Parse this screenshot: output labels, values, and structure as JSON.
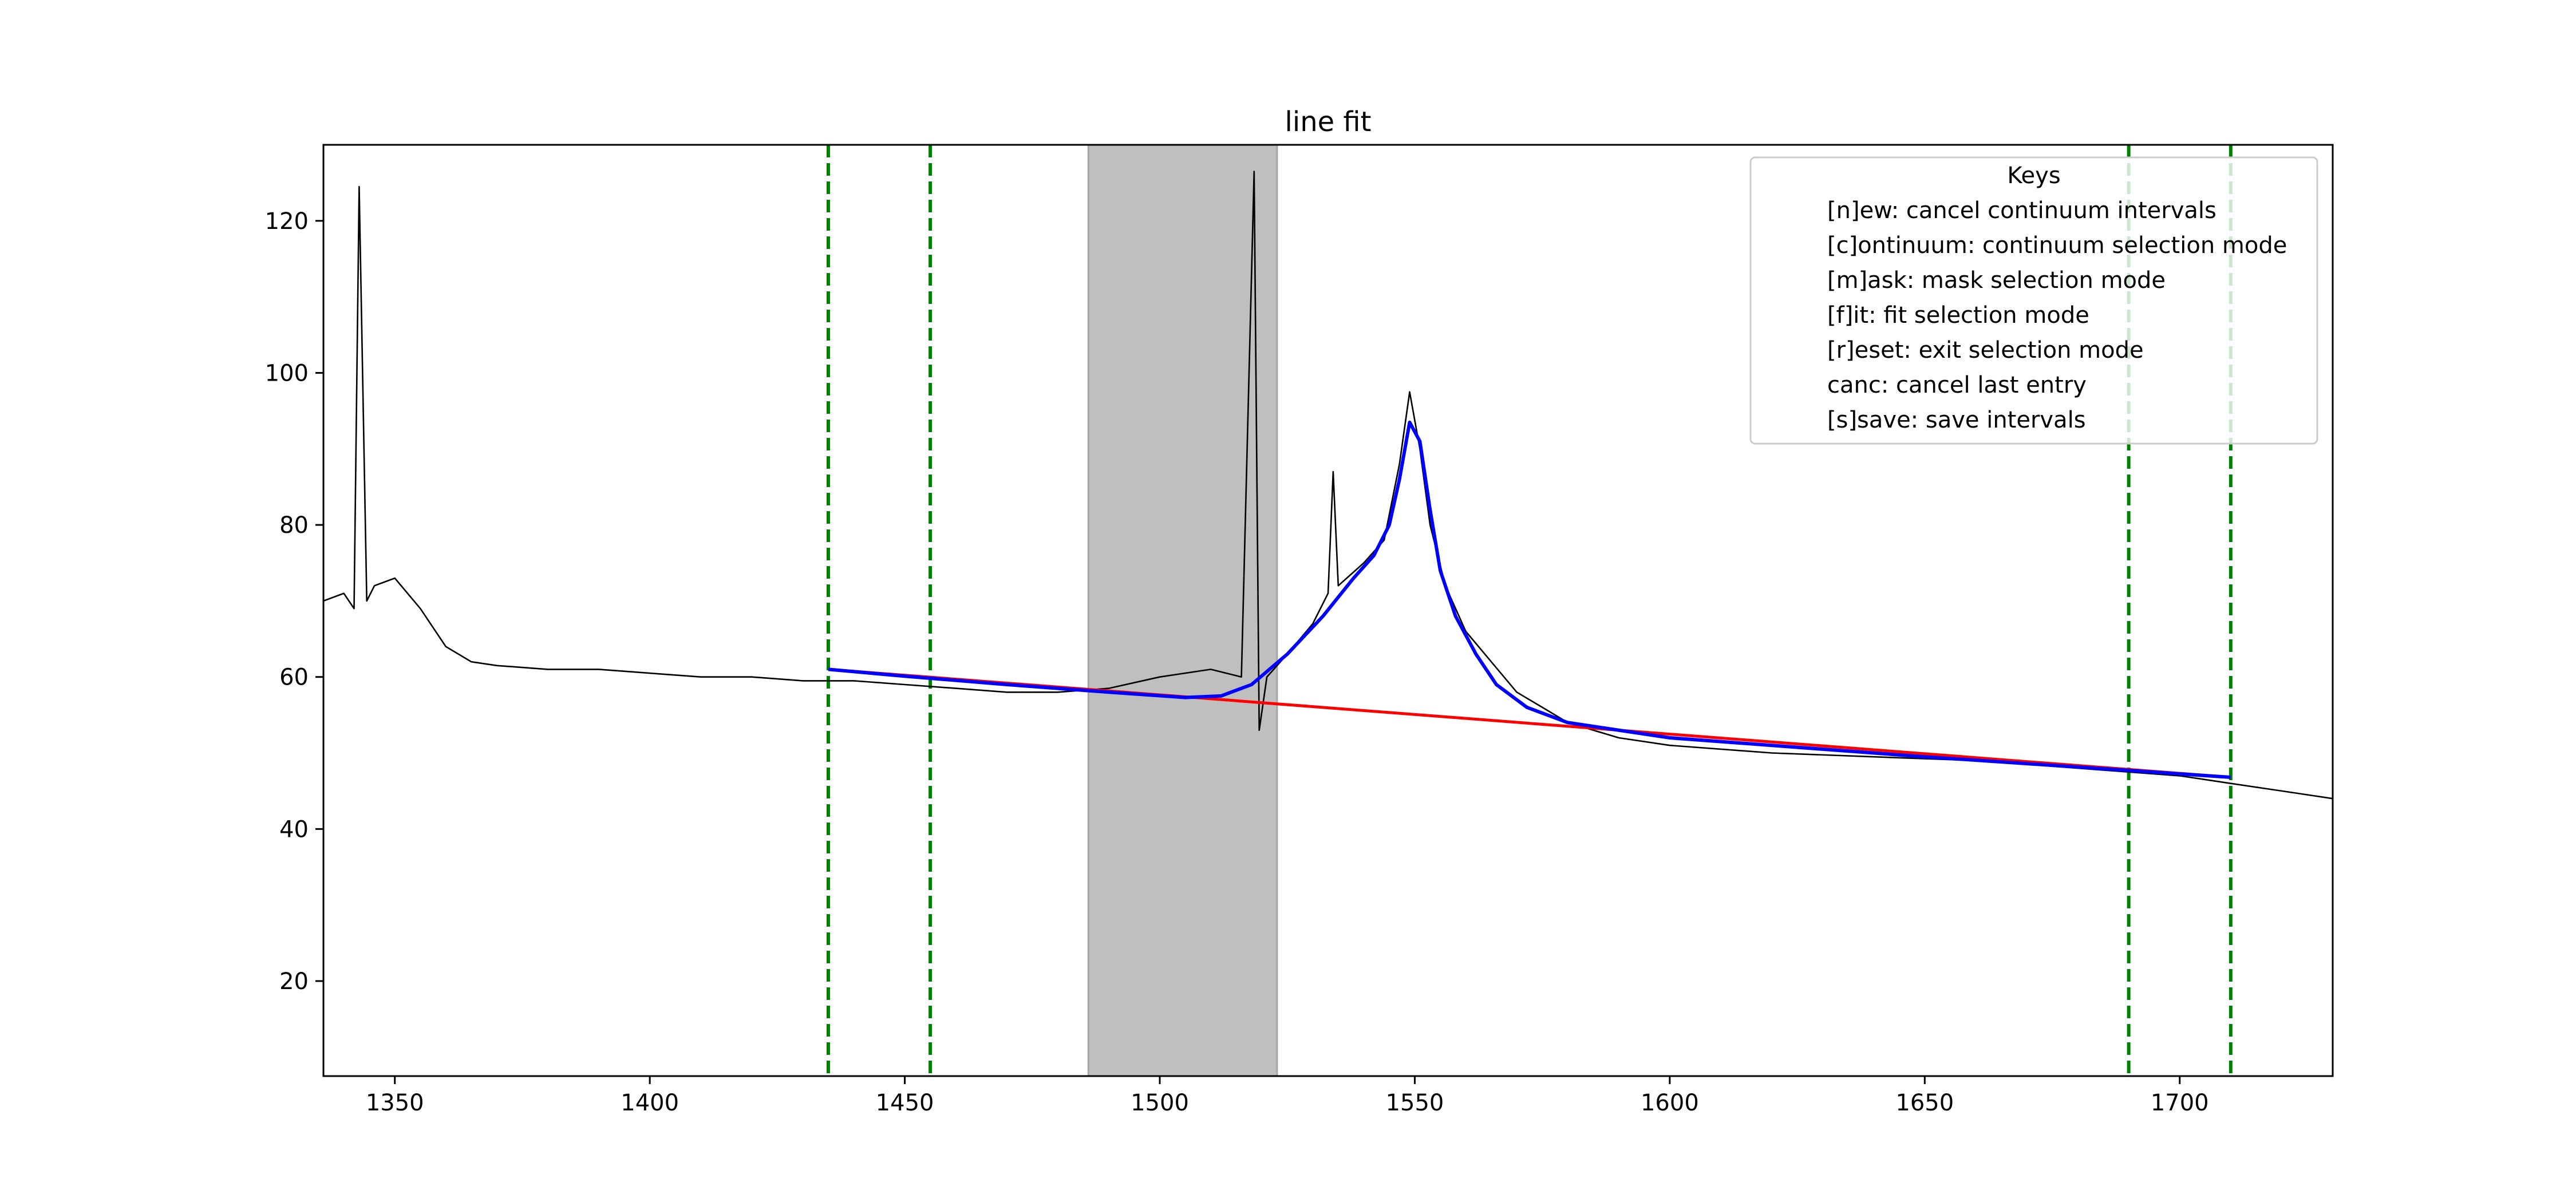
{
  "chart_data": {
    "type": "line",
    "title": "line fit",
    "xlabel": "",
    "ylabel": "",
    "xlim": [
      1336,
      1730
    ],
    "ylim": [
      7.5,
      130
    ],
    "grid": false,
    "xticks": [
      1350,
      1400,
      1450,
      1500,
      1550,
      1600,
      1650,
      1700
    ],
    "yticks": [
      20,
      40,
      60,
      80,
      100,
      120
    ],
    "legend": {
      "title": "Keys",
      "location": "top-right",
      "entries": [
        "[n]ew: cancel continuum intervals",
        "[c]ontinuum: continuum selection mode",
        "[m]ask: mask selection mode",
        "[f]it: fit selection mode",
        "[r]eset: exit selection mode",
        "canc: cancel last entry",
        "[s]save: save intervals"
      ]
    },
    "continuum_markers": {
      "color": "#008000",
      "style": "dashed",
      "x": [
        1435,
        1455,
        1690,
        1710
      ]
    },
    "mask_region": {
      "x0": 1486,
      "x1": 1523,
      "color": "#bfbfbf"
    },
    "series": [
      {
        "color": "#000000",
        "points": [
          [
            1336,
            70
          ],
          [
            1340,
            71
          ],
          [
            1342,
            69
          ],
          [
            1343,
            124.5
          ],
          [
            1344.5,
            70
          ],
          [
            1346,
            72
          ],
          [
            1350,
            73
          ],
          [
            1355,
            69
          ],
          [
            1360,
            64
          ],
          [
            1365,
            62
          ],
          [
            1370,
            61.5
          ],
          [
            1380,
            61
          ],
          [
            1390,
            61
          ],
          [
            1400,
            60.5
          ],
          [
            1410,
            60
          ],
          [
            1420,
            60
          ],
          [
            1430,
            59.5
          ],
          [
            1440,
            59.5
          ],
          [
            1450,
            59
          ],
          [
            1460,
            58.5
          ],
          [
            1470,
            58
          ],
          [
            1480,
            58
          ],
          [
            1490,
            58.5
          ],
          [
            1500,
            60
          ],
          [
            1510,
            61
          ],
          [
            1516,
            60
          ],
          [
            1518.5,
            126.5
          ],
          [
            1519.5,
            53
          ],
          [
            1521,
            60
          ],
          [
            1525,
            63
          ],
          [
            1530,
            67
          ],
          [
            1533,
            71
          ],
          [
            1534,
            87
          ],
          [
            1535,
            72
          ],
          [
            1540,
            75
          ],
          [
            1544,
            78
          ],
          [
            1547,
            88
          ],
          [
            1549,
            97.5
          ],
          [
            1551,
            90
          ],
          [
            1553,
            80
          ],
          [
            1556,
            72
          ],
          [
            1560,
            66
          ],
          [
            1565,
            62
          ],
          [
            1570,
            58
          ],
          [
            1575,
            56
          ],
          [
            1580,
            54
          ],
          [
            1590,
            52
          ],
          [
            1600,
            51
          ],
          [
            1620,
            50
          ],
          [
            1640,
            49.5
          ],
          [
            1660,
            49
          ],
          [
            1680,
            48
          ],
          [
            1700,
            47
          ],
          [
            1710,
            46
          ],
          [
            1720,
            45
          ],
          [
            1730,
            44
          ]
        ]
      },
      {
        "color": "#ff0000",
        "points": [
          [
            1435,
            61
          ],
          [
            1710,
            46.8
          ]
        ]
      },
      {
        "color": "#0000ff",
        "points": [
          [
            1435,
            61
          ],
          [
            1450,
            60.1
          ],
          [
            1470,
            59
          ],
          [
            1490,
            58
          ],
          [
            1505,
            57.3
          ],
          [
            1512,
            57.5
          ],
          [
            1518,
            59
          ],
          [
            1525,
            63
          ],
          [
            1532,
            68
          ],
          [
            1538,
            73
          ],
          [
            1542,
            76
          ],
          [
            1545,
            80
          ],
          [
            1547,
            86
          ],
          [
            1549,
            93.5
          ],
          [
            1551,
            91
          ],
          [
            1553,
            82
          ],
          [
            1555,
            74
          ],
          [
            1558,
            68
          ],
          [
            1562,
            63
          ],
          [
            1566,
            59
          ],
          [
            1572,
            56
          ],
          [
            1580,
            54
          ],
          [
            1600,
            52
          ],
          [
            1650,
            49.5
          ],
          [
            1710,
            46.8
          ]
        ]
      }
    ]
  }
}
